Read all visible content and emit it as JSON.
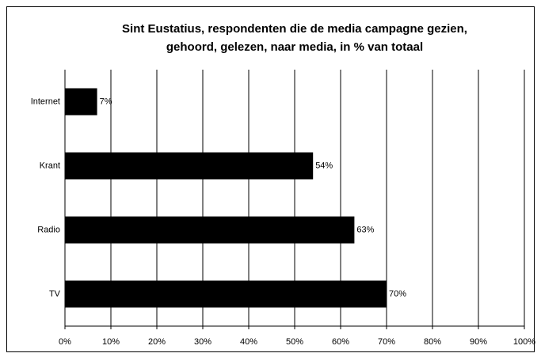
{
  "chart_data": {
    "type": "bar",
    "orientation": "horizontal",
    "title": [
      "Sint Eustatius, respondenten die de media campagne gezien,",
      "gehoord, gelezen, naar media, in % van totaal"
    ],
    "categories": [
      "Internet",
      "Krant",
      "Radio",
      "TV"
    ],
    "values": [
      7,
      54,
      63,
      70
    ],
    "value_labels": [
      "7%",
      "54%",
      "63%",
      "70%"
    ],
    "color": "#000000",
    "xlim": [
      0,
      100
    ],
    "xticks": [
      {
        "value": 0,
        "label": "0%"
      },
      {
        "value": 10,
        "label": "10%"
      },
      {
        "value": 20,
        "label": "20%"
      },
      {
        "value": 30,
        "label": "30%"
      },
      {
        "value": 40,
        "label": "40%"
      },
      {
        "value": 50,
        "label": "50%"
      },
      {
        "value": 60,
        "label": "60%"
      },
      {
        "value": 70,
        "label": "70%"
      },
      {
        "value": 80,
        "label": "80%"
      },
      {
        "value": 90,
        "label": "90%"
      },
      {
        "value": 100,
        "label": "100%"
      }
    ],
    "grid": true
  }
}
